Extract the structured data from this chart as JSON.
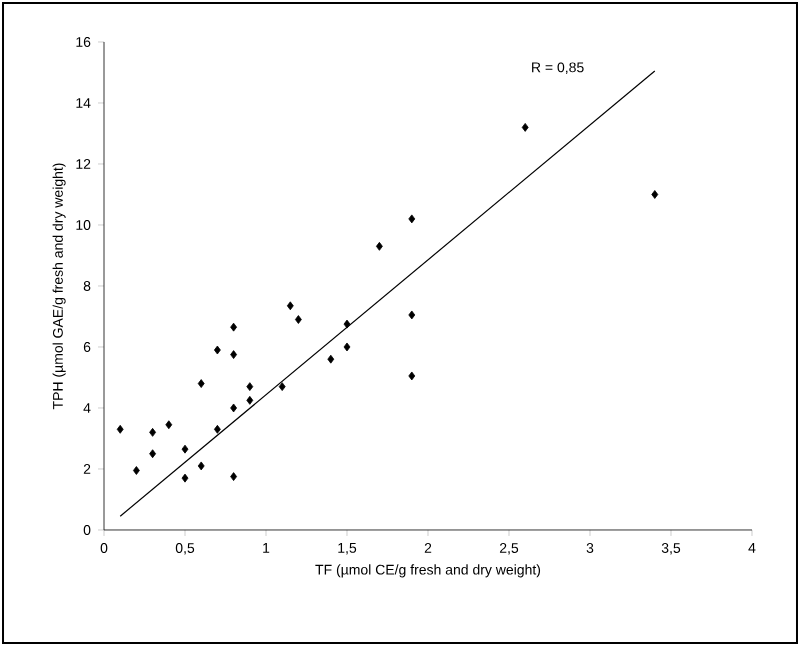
{
  "chart_data": {
    "type": "scatter",
    "xlabel": "TF (µmol  CE/g fresh and dry weight)",
    "ylabel": "TPH (µmol  GAE/g fresh and dry weight)",
    "xlim": [
      0,
      4
    ],
    "ylim": [
      0,
      16
    ],
    "xticks": [
      0,
      {
        "value": 0.5,
        "label": "0,5"
      },
      1,
      {
        "value": 1.5,
        "label": "1,5"
      },
      2,
      {
        "value": 2.5,
        "label": "2,5"
      },
      3,
      {
        "value": 3.5,
        "label": "3,5"
      },
      4
    ],
    "yticks": [
      0,
      2,
      4,
      6,
      8,
      10,
      12,
      14,
      16
    ],
    "series": [
      {
        "marker": "diamond",
        "color": "#000000",
        "x": [
          0.1,
          0.2,
          0.3,
          0.3,
          0.4,
          0.5,
          0.5,
          0.6,
          0.6,
          0.7,
          0.7,
          0.8,
          0.8,
          0.8,
          0.8,
          0.9,
          0.9,
          1.1,
          1.15,
          1.2,
          1.4,
          1.5,
          1.5,
          1.7,
          1.9,
          1.9,
          1.9,
          2.6,
          3.4
        ],
        "values": [
          3.3,
          1.95,
          3.2,
          2.5,
          3.45,
          2.65,
          1.7,
          4.8,
          2.1,
          5.9,
          3.3,
          6.65,
          5.75,
          4.0,
          1.75,
          4.7,
          4.25,
          4.7,
          7.35,
          6.9,
          5.6,
          6.75,
          6.0,
          9.3,
          10.2,
          7.05,
          5.05,
          13.2,
          11.0
        ]
      },
      {
        "type": "line",
        "marker": "none",
        "line_style": "solid",
        "color": "#000000",
        "x": [
          0.1,
          3.4
        ],
        "values": [
          0.45,
          15.05
        ]
      }
    ],
    "annotations": [
      "R = 0,85"
    ]
  }
}
